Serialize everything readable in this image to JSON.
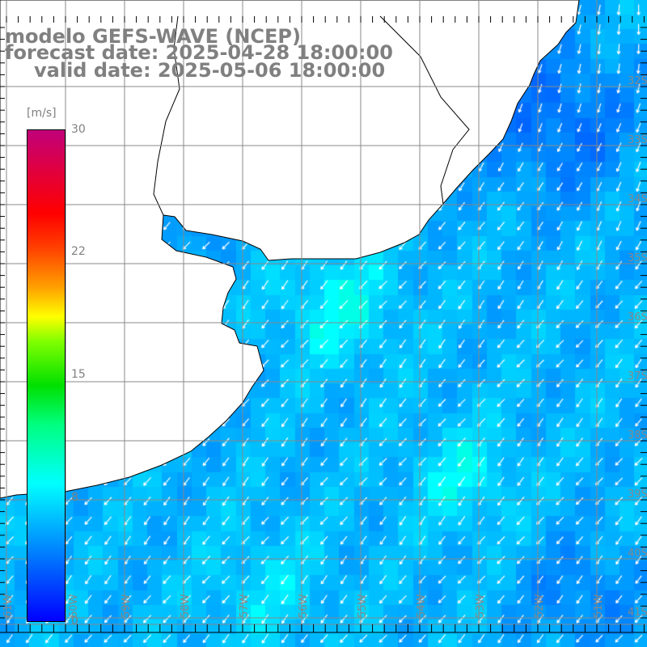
{
  "title": {
    "line1": "modelo GEFS-WAVE (NCEP)",
    "line2": "forecast date: 2025-04-28 18:00:00",
    "line3": "valid date: 2025-05-06 18:00:00"
  },
  "colorbar": {
    "unit": "[m/s]",
    "ticks": [
      "30",
      "22",
      "15",
      "8",
      "0"
    ],
    "range": [
      0,
      30
    ]
  },
  "grid": {
    "lat_labels": [
      "32S",
      "33S",
      "34S",
      "35S",
      "36S",
      "37S",
      "38S",
      "39S",
      "40S",
      "41S"
    ],
    "lon_labels": [
      "61W",
      "60W",
      "59W",
      "58W",
      "57W",
      "56W",
      "55W",
      "54W",
      "53W",
      "52W",
      "51W"
    ]
  },
  "colors": {
    "land": "#ffffff",
    "coast": "#000000",
    "grid": "#888888",
    "arrow": "#ffffff"
  }
}
